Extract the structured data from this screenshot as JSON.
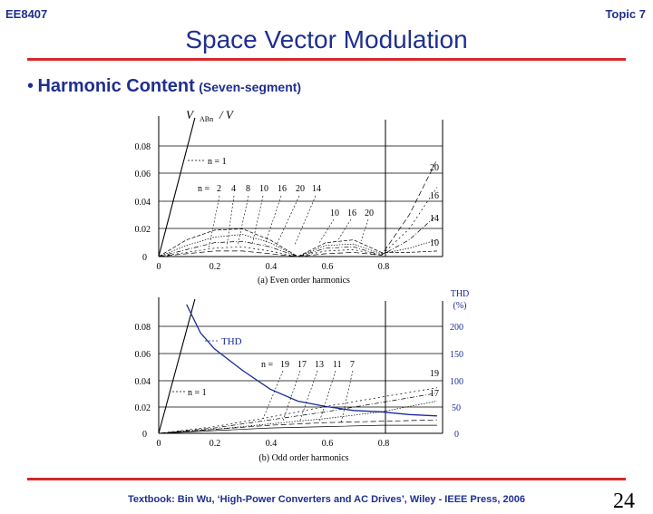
{
  "header": {
    "course_code": "EE8407",
    "topic": "Topic 7",
    "title": "Space Vector Modulation"
  },
  "bullet": {
    "main": "Harmonic Content",
    "sub": "(Seven-segment)"
  },
  "footer": {
    "citation": "Textbook: Bin Wu, ‘High-Power Converters and AC Drives’, Wiley - IEEE Press, 2006",
    "page_number": "24"
  },
  "colors": {
    "title_blue": "#1f2f8f",
    "rule_red": "#d62828",
    "thd_curve": "#1a2a9a"
  },
  "chart_data": [
    {
      "type": "line",
      "title": "(a)  Even order harmonics",
      "ylabel_parts": [
        "V",
        "ABn",
        "/ V"
      ],
      "x_ticks": [
        "0",
        "0.2",
        "0.4",
        "0.6",
        "0.8"
      ],
      "y_ticks": [
        "0",
        "0.02",
        "0.04",
        "0.06",
        "0.08"
      ],
      "xlim": [
        0,
        1.02
      ],
      "ylim": [
        0,
        0.1
      ],
      "annotations": {
        "fundamental": "n = 1",
        "n_prefix": "n =",
        "n_list": [
          "2",
          "4",
          "8",
          "10",
          "16",
          "20",
          "14"
        ],
        "mid_list": [
          "10",
          "16",
          "20"
        ],
        "right_labels": [
          "20",
          "16",
          "14",
          "10"
        ]
      },
      "series": [
        {
          "role": "fundamental",
          "x": [
            0,
            0.13
          ],
          "y": [
            0,
            0.1
          ]
        },
        {
          "values_note": "n=2",
          "x": [
            0,
            0.1,
            0.2,
            0.3,
            0.4,
            0.5,
            0.6,
            0.7,
            0.8,
            0.9,
            1.0
          ],
          "y": [
            0,
            0.012,
            0.019,
            0.02,
            0.012,
            0,
            0.01,
            0.012,
            0.003,
            0.003,
            0.004
          ]
        },
        {
          "x": [
            0,
            0.1,
            0.2,
            0.3,
            0.4,
            0.5,
            0.6,
            0.7,
            0.8,
            0.9,
            1.0
          ],
          "y": [
            0,
            0.008,
            0.014,
            0.016,
            0.01,
            0,
            0.008,
            0.009,
            0.002,
            0.006,
            0.012
          ]
        },
        {
          "x": [
            0,
            0.1,
            0.2,
            0.3,
            0.4,
            0.5,
            0.6,
            0.7,
            0.8,
            0.9,
            1.0
          ],
          "y": [
            0,
            0.005,
            0.01,
            0.011,
            0.007,
            0,
            0.006,
            0.007,
            0.001,
            0.012,
            0.03
          ]
        },
        {
          "x": [
            0,
            0.1,
            0.2,
            0.3,
            0.4,
            0.5,
            0.6,
            0.7,
            0.8,
            0.9,
            1.0
          ],
          "y": [
            0,
            0.003,
            0.006,
            0.007,
            0.004,
            0,
            0.004,
            0.005,
            0.001,
            0.02,
            0.05
          ]
        },
        {
          "x": [
            0,
            0.1,
            0.2,
            0.3,
            0.4,
            0.5,
            0.6,
            0.7,
            0.8,
            0.9,
            1.0
          ],
          "y": [
            0,
            0.002,
            0.004,
            0.004,
            0.002,
            0,
            0.002,
            0.003,
            0.001,
            0.03,
            0.07
          ]
        }
      ]
    },
    {
      "type": "line",
      "title": "(b)  Odd order harmonics",
      "y2label": [
        "THD",
        "(%)"
      ],
      "x_ticks": [
        "0",
        "0.2",
        "0.4",
        "0.6",
        "0.8"
      ],
      "y_ticks": [
        "0",
        "0.02",
        "0.04",
        "0.06",
        "0.08"
      ],
      "y2_ticks": [
        "0",
        "50",
        "100",
        "150",
        "200"
      ],
      "xlim": [
        0,
        1.02
      ],
      "ylim": [
        0,
        0.1
      ],
      "annotations": {
        "thd": "THD",
        "fundamental": "n = 1",
        "n_prefix": "n =",
        "n_list": [
          "19",
          "17",
          "13",
          "11",
          "7"
        ],
        "right_labels": [
          "19",
          "17"
        ]
      },
      "series": [
        {
          "role": "fundamental",
          "x": [
            0,
            0.13
          ],
          "y": [
            0,
            0.1
          ]
        },
        {
          "role": "THD",
          "x": [
            0.1,
            0.15,
            0.2,
            0.3,
            0.4,
            0.5,
            0.6,
            0.7,
            0.8,
            0.9,
            1.0
          ],
          "y": [
            0.096,
            0.075,
            0.063,
            0.047,
            0.033,
            0.024,
            0.02,
            0.017,
            0.016,
            0.014,
            0.013
          ]
        },
        {
          "x": [
            0,
            0.2,
            0.4,
            0.6,
            0.8,
            1.0
          ],
          "y": [
            0,
            0.003,
            0.007,
            0.011,
            0.016,
            0.024
          ]
        },
        {
          "x": [
            0,
            0.2,
            0.4,
            0.6,
            0.8,
            1.0
          ],
          "y": [
            0,
            0.004,
            0.01,
            0.016,
            0.023,
            0.03
          ]
        },
        {
          "x": [
            0,
            0.2,
            0.4,
            0.6,
            0.8,
            1.0
          ],
          "y": [
            0,
            0.005,
            0.012,
            0.02,
            0.027,
            0.034
          ]
        },
        {
          "x": [
            0,
            0.2,
            0.4,
            0.6,
            0.8,
            1.0
          ],
          "y": [
            0,
            0.003,
            0.006,
            0.008,
            0.009,
            0.01
          ]
        },
        {
          "x": [
            0,
            0.2,
            0.4,
            0.6,
            0.8,
            1.0
          ],
          "y": [
            0,
            0.002,
            0.004,
            0.005,
            0.006,
            0.006
          ]
        }
      ]
    }
  ]
}
